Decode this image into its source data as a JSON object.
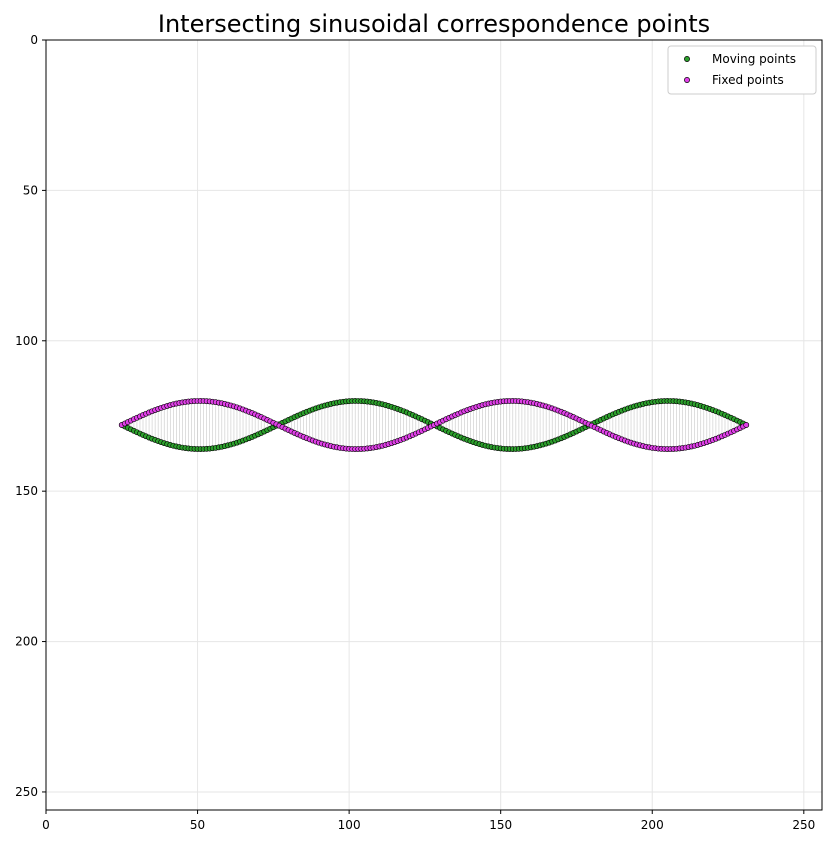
{
  "chart_data": {
    "type": "scatter",
    "title": "Intersecting sinusoidal correspondence points",
    "xlabel": "",
    "ylabel": "",
    "xlim": [
      0,
      256
    ],
    "ylim": [
      256,
      0
    ],
    "y_inverted": true,
    "xticks": [
      0,
      50,
      100,
      150,
      200,
      250
    ],
    "yticks": [
      0,
      50,
      100,
      150,
      200,
      250
    ],
    "grid": true,
    "legend_position": "top-right",
    "x_range": [
      25,
      231
    ],
    "point_count": 207,
    "center_y": 128,
    "amplitude": 8,
    "period": 103,
    "correspondence_lines": true,
    "colors": {
      "moving": "#2ca02c",
      "fixed": "#e040e8",
      "edge": "#000000",
      "lines": "#c8c8c8",
      "grid": "#e6e6e6"
    },
    "series": [
      {
        "name": "Moving points",
        "relation": "y = center_y + amplitude * sin(2*pi*(x - x_start)/period)",
        "color": "#2ca02c"
      },
      {
        "name": "Fixed points",
        "relation": "y = center_y - amplitude * sin(2*pi*(x - x_start)/period)",
        "color": "#e040e8"
      }
    ]
  }
}
